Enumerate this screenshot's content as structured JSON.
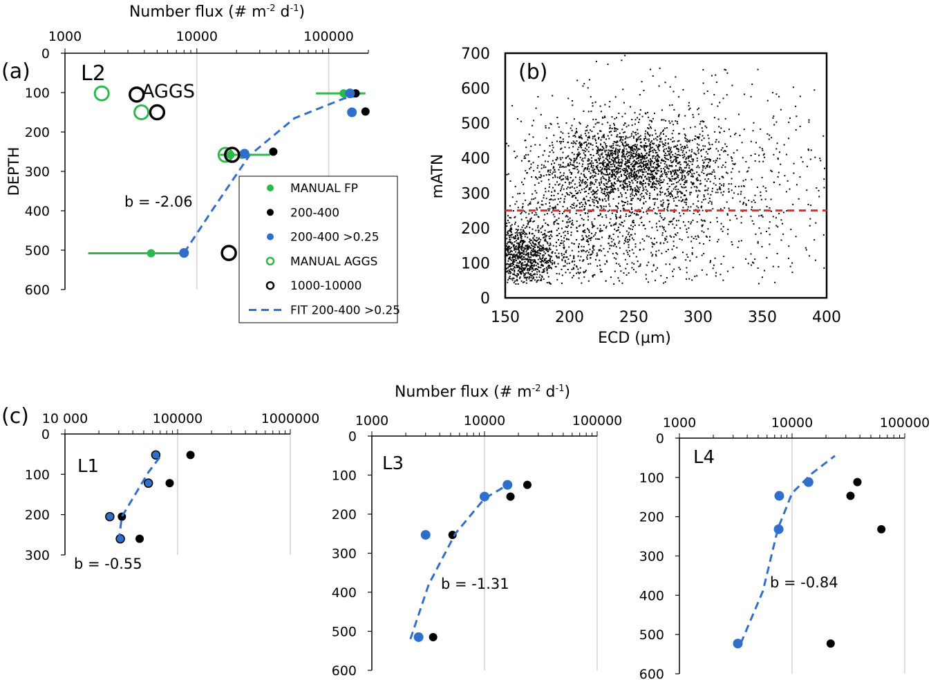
{
  "colors": {
    "green": "#2eb84b",
    "blue": "#2f6fc9",
    "black": "#000000",
    "red": "#e8262b",
    "grid": "#d4d4d4"
  },
  "panel_labels": {
    "a": "(a)",
    "b": "(b)",
    "c": "(c)"
  },
  "panel_a": {
    "x_title": "Number flux (# m-2 d-1)",
    "y_title": "DEPTH",
    "station": "L2",
    "aggs_label": "AGGS",
    "b_label": "b = -2.06",
    "legend": [
      {
        "label": "MANUAL FP",
        "style": "green-dot"
      },
      {
        "label": "200-400",
        "style": "black-dot"
      },
      {
        "label": "200-400 >0.25",
        "style": "blue-dot"
      },
      {
        "label": "MANUAL AGGS",
        "style": "green-ring"
      },
      {
        "label": "1000-10000",
        "style": "black-ring"
      },
      {
        "label": "FIT 200-400 >0.25",
        "style": "blue-dash"
      }
    ]
  },
  "panel_b": {
    "x_title": "ECD (µm)",
    "y_title": "mATN"
  },
  "panel_c": {
    "x_title": "Number flux (# m-2 d-1)",
    "L1": {
      "station": "L1",
      "b_label": "b = -0.55"
    },
    "L3": {
      "station": "L3",
      "b_label": "b = -1.31"
    },
    "L4": {
      "station": "L4",
      "b_label": "b = -0.84"
    }
  },
  "chart_data": [
    {
      "panel": "a",
      "type": "scatter",
      "x_scale": "log",
      "xlim": [
        1000,
        200000
      ],
      "x_ticks": [
        "1000",
        "10000",
        "100000"
      ],
      "ylim": [
        600,
        0
      ],
      "y_ticks": [
        "0",
        "100",
        "200",
        "300",
        "400",
        "500",
        "600"
      ],
      "xlabel": "Number flux (# m-2 d-1)",
      "ylabel": "DEPTH",
      "series": [
        {
          "name": "MANUAL FP",
          "style": "green-dot",
          "points": [
            [
              130000,
              102
            ],
            [
              18000,
              258
            ],
            [
              22000,
              258
            ],
            [
              4500,
              508
            ]
          ],
          "x_err": [
            [
              80000,
              190000
            ],
            [
              15000,
              36000
            ],
            [
              15000,
              36000
            ],
            [
              1500,
              8000
            ]
          ]
        },
        {
          "name": "200-400",
          "style": "black-dot",
          "points": [
            [
              160000,
              102
            ],
            [
              190000,
              148
            ],
            [
              38000,
              250
            ],
            [
              25000,
              505
            ]
          ]
        },
        {
          "name": "200-400 >0.25",
          "style": "blue-dot",
          "points": [
            [
              145000,
              102
            ],
            [
              150000,
              150
            ],
            [
              23000,
              255
            ],
            [
              8000,
              507
            ]
          ]
        },
        {
          "name": "MANUAL AGGS",
          "style": "green-ring",
          "points": [
            [
              1900,
              102
            ],
            [
              3800,
              150
            ],
            [
              16500,
              258
            ],
            [
              17500,
              508
            ]
          ]
        },
        {
          "name": "1000-10000",
          "style": "black-ring",
          "points": [
            [
              3500,
              105
            ],
            [
              5000,
              150
            ],
            [
              18500,
              258
            ],
            [
              17500,
              507
            ]
          ]
        },
        {
          "name": "FIT 200-400 >0.25",
          "style": "blue-dash",
          "points": [
            [
              8000,
              507
            ],
            [
              13000,
              400
            ],
            [
              25000,
              260
            ],
            [
              55000,
              165
            ],
            [
              130000,
              115
            ],
            [
              180000,
              105
            ]
          ]
        }
      ]
    },
    {
      "panel": "b",
      "type": "scatter",
      "xlim": [
        150,
        400
      ],
      "x_ticks": [
        "150",
        "200",
        "250",
        "300",
        "350",
        "400"
      ],
      "ylim": [
        0,
        700
      ],
      "y_ticks": [
        "0",
        "100",
        "200",
        "300",
        "400",
        "500",
        "600",
        "700"
      ],
      "xlabel": "ECD (µm)",
      "ylabel": "mATN",
      "threshold_line": 250,
      "clusters": [
        {
          "center": [
            255,
            380
          ],
          "spread": [
            30,
            55
          ],
          "count": 1300
        },
        {
          "center": [
            215,
            370
          ],
          "spread": [
            28,
            70
          ],
          "count": 500
        },
        {
          "center": [
            160,
            120
          ],
          "spread": [
            14,
            45
          ],
          "count": 900
        },
        {
          "center": [
            200,
            160
          ],
          "spread": [
            40,
            75
          ],
          "count": 600
        },
        {
          "center": [
            275,
            300
          ],
          "spread": [
            65,
            160
          ],
          "count": 1300
        }
      ]
    },
    {
      "panel": "c-L1",
      "type": "scatter",
      "x_scale": "log",
      "xlim": [
        10000,
        1000000
      ],
      "x_ticks": [
        "10 000",
        "100000",
        "1000000"
      ],
      "ylim": [
        300,
        0
      ],
      "y_ticks": [
        "0",
        "100",
        "200",
        "300"
      ],
      "series": [
        {
          "name": "200-400",
          "style": "black-dot",
          "points": [
            [
              130000,
              52
            ],
            [
              85000,
              122
            ],
            [
              32000,
              205
            ],
            [
              46000,
              260
            ]
          ]
        },
        {
          "name": "200-400 >0.25",
          "style": "blue-dot-outlined",
          "points": [
            [
              64000,
              52
            ],
            [
              55000,
              122
            ],
            [
              25000,
              205
            ],
            [
              31000,
              260
            ]
          ]
        },
        {
          "name": "FIT",
          "style": "blue-dash",
          "points": [
            [
              30000,
              265
            ],
            [
              32000,
              205
            ],
            [
              42000,
              150
            ],
            [
              55000,
              95
            ],
            [
              72000,
              52
            ]
          ]
        }
      ]
    },
    {
      "panel": "c-L3",
      "type": "scatter",
      "x_scale": "log",
      "xlim": [
        1000,
        100000
      ],
      "x_ticks": [
        "1000",
        "10000",
        "100000"
      ],
      "ylim": [
        600,
        0
      ],
      "y_ticks": [
        "0",
        "100",
        "200",
        "300",
        "400",
        "500",
        "600"
      ],
      "series": [
        {
          "name": "200-400",
          "style": "black-dot",
          "points": [
            [
              24000,
              125
            ],
            [
              17000,
              155
            ],
            [
              5200,
              253
            ],
            [
              3500,
              515
            ]
          ]
        },
        {
          "name": "200-400 >0.25",
          "style": "blue-dot",
          "points": [
            [
              16000,
              125
            ],
            [
              10000,
              155
            ],
            [
              3000,
              253
            ],
            [
              2600,
              515
            ]
          ]
        },
        {
          "name": "FIT",
          "style": "blue-dash",
          "points": [
            [
              2200,
              520
            ],
            [
              3200,
              380
            ],
            [
              5500,
              250
            ],
            [
              10000,
              160
            ],
            [
              16000,
              125
            ]
          ]
        }
      ]
    },
    {
      "panel": "c-L4",
      "type": "scatter",
      "x_scale": "log",
      "xlim": [
        1000,
        100000
      ],
      "x_ticks": [
        "1000",
        "10000",
        "100000"
      ],
      "ylim": [
        600,
        0
      ],
      "y_ticks": [
        "0",
        "100",
        "200",
        "300",
        "400",
        "500",
        "600"
      ],
      "series": [
        {
          "name": "200-400",
          "style": "black-dot",
          "points": [
            [
              38000,
              112
            ],
            [
              33000,
              147
            ],
            [
              62000,
              232
            ],
            [
              22000,
              523
            ]
          ]
        },
        {
          "name": "200-400 >0.25",
          "style": "blue-dot",
          "points": [
            [
              14000,
              112
            ],
            [
              7700,
              147
            ],
            [
              7600,
              232
            ],
            [
              3300,
              523
            ]
          ]
        },
        {
          "name": "FIT",
          "style": "blue-dash",
          "points": [
            [
              3500,
              523
            ],
            [
              5500,
              390
            ],
            [
              7500,
              230
            ],
            [
              10000,
              140
            ],
            [
              15000,
              90
            ],
            [
              24000,
              45
            ]
          ]
        }
      ]
    }
  ]
}
